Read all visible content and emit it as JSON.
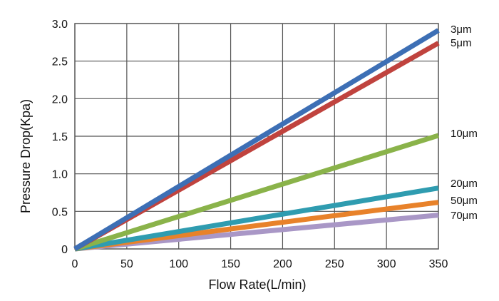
{
  "chart_data": {
    "type": "line",
    "xlabel": "Flow Rate(L/min)",
    "ylabel": "Pressure Drop(Kpa)",
    "xlim": [
      0,
      350
    ],
    "ylim": [
      0,
      3.0
    ],
    "x_ticks": [
      "0",
      "50",
      "100",
      "150",
      "200",
      "250",
      "300",
      "350"
    ],
    "y_ticks": [
      "0",
      "0.5",
      "1.0",
      "1.5",
      "2.0",
      "2.5",
      "3.0"
    ],
    "grid": true,
    "legend": "none",
    "series": [
      {
        "name": "3μm",
        "color": "#3d6fb5",
        "x": [
          0,
          350
        ],
        "y": [
          0,
          2.91
        ]
      },
      {
        "name": "5μm",
        "color": "#c0433e",
        "x": [
          0,
          350
        ],
        "y": [
          0,
          2.74
        ]
      },
      {
        "name": "10μm",
        "color": "#8ab34a",
        "x": [
          0,
          350
        ],
        "y": [
          0,
          1.51
        ]
      },
      {
        "name": "20μm",
        "color": "#2f9cb0",
        "x": [
          0,
          350
        ],
        "y": [
          0,
          0.81
        ]
      },
      {
        "name": "50μm",
        "color": "#e8822a",
        "x": [
          0,
          350
        ],
        "y": [
          0,
          0.62
        ]
      },
      {
        "name": "70μm",
        "color": "#a997c6",
        "x": [
          0,
          350
        ],
        "y": [
          0,
          0.45
        ]
      }
    ]
  }
}
